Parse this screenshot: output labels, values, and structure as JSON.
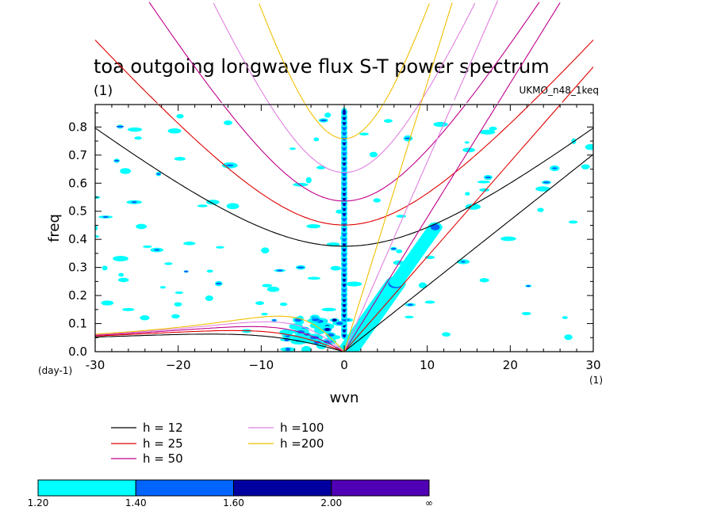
{
  "chart_data": {
    "type": "contour",
    "title": "toa outgoing longwave flux S-T power spectrum",
    "subtitle_left": "(1)",
    "subtitle_right": "UKMO_n48_1keq",
    "xlabel": "wvn",
    "ylabel": "freq",
    "x_unit": "(1)",
    "y_unit": "(day-1)",
    "xlim": [
      -30,
      30
    ],
    "ylim": [
      0,
      0.88
    ],
    "x_ticks": [
      -30,
      -20,
      -10,
      0,
      10,
      20,
      30
    ],
    "x_tick_labels": [
      "-30",
      "−20",
      "−10",
      "0",
      "10",
      "20",
      "30"
    ],
    "y_ticks": [
      0.0,
      0.1,
      0.2,
      0.3,
      0.4,
      0.5,
      0.6,
      0.7,
      0.8
    ],
    "y_tick_labels": [
      "0.0",
      "0.1",
      "0.2",
      "0.3",
      "0.4",
      "0.5",
      "0.6",
      "0.7",
      "0.8"
    ],
    "dispersion_curves": [
      {
        "label": "h = 12",
        "h": 12,
        "color": "#000000"
      },
      {
        "label": "h = 25",
        "h": 25,
        "color": "#e00000"
      },
      {
        "label": "h = 50",
        "h": 50,
        "color": "#c0008c"
      },
      {
        "label": "h =100",
        "h": 100,
        "color": "#e080e0"
      },
      {
        "label": "h =200",
        "h": 200,
        "color": "#f0c000"
      }
    ],
    "colorbar": {
      "levels": [
        "1.20",
        "1.40",
        "1.60",
        "2.00",
        "∞"
      ],
      "colors": [
        "#00ffff",
        "#0064ff",
        "#0000a0",
        "#5000b4"
      ]
    },
    "shaded_features": [
      {
        "name": "kelvin-wave-band",
        "x_range": [
          0,
          11
        ],
        "y_range": [
          0,
          0.45
        ]
      },
      {
        "name": "zero-wavenumber-column",
        "x": 0,
        "y_range": [
          0.05,
          0.88
        ]
      },
      {
        "name": "low-frequency-westward-cluster",
        "x_range": [
          -7,
          0
        ],
        "y_range": [
          0,
          0.12
        ]
      }
    ]
  }
}
